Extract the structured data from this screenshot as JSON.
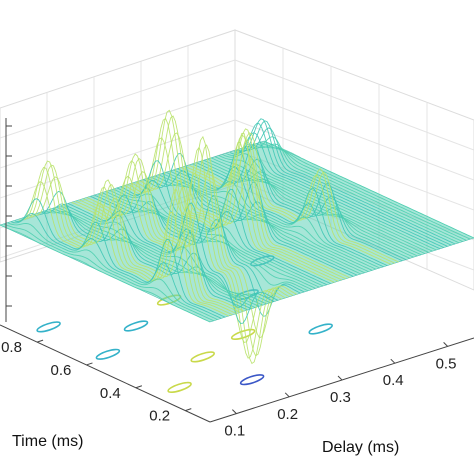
{
  "chart_data": {
    "type": "surface",
    "title": "",
    "xlabel": "Delay (ms)",
    "ylabel": "Time (ms)",
    "zlabel": "",
    "x_ticks": [
      "0.1",
      "0.2",
      "0.3",
      "0.4",
      "0.5"
    ],
    "y_ticks": [
      "0.2",
      "0.4",
      "0.6",
      "0.8"
    ],
    "xlim": [
      0.05,
      0.55
    ],
    "ylim": [
      0.1,
      0.95
    ],
    "grid": true,
    "baseline_level": 0,
    "colormap": "parula",
    "contour_projection": true,
    "ridges": [
      {
        "delay": 0.1,
        "peaks": [
          {
            "time": 0.86,
            "amp": 0.55
          },
          {
            "time": 0.62,
            "amp": 0.62
          },
          {
            "time": 0.33,
            "amp": 0.9
          }
        ]
      },
      {
        "delay": 0.2,
        "peaks": [
          {
            "time": 0.72,
            "amp": 0.6
          },
          {
            "time": 0.45,
            "amp": 1.0
          },
          {
            "time": 0.25,
            "amp": -0.7
          }
        ]
      },
      {
        "delay": 0.3,
        "peaks": [
          {
            "time": 0.8,
            "amp": 0.75
          },
          {
            "time": 0.5,
            "amp": 0.85
          }
        ]
      },
      {
        "delay": 0.4,
        "peaks": [
          {
            "time": 0.7,
            "amp": 0.55
          },
          {
            "time": 0.4,
            "amp": 0.5
          }
        ]
      },
      {
        "delay": 0.5,
        "peaks": [
          {
            "time": 0.85,
            "amp": 0.35
          }
        ]
      }
    ]
  }
}
